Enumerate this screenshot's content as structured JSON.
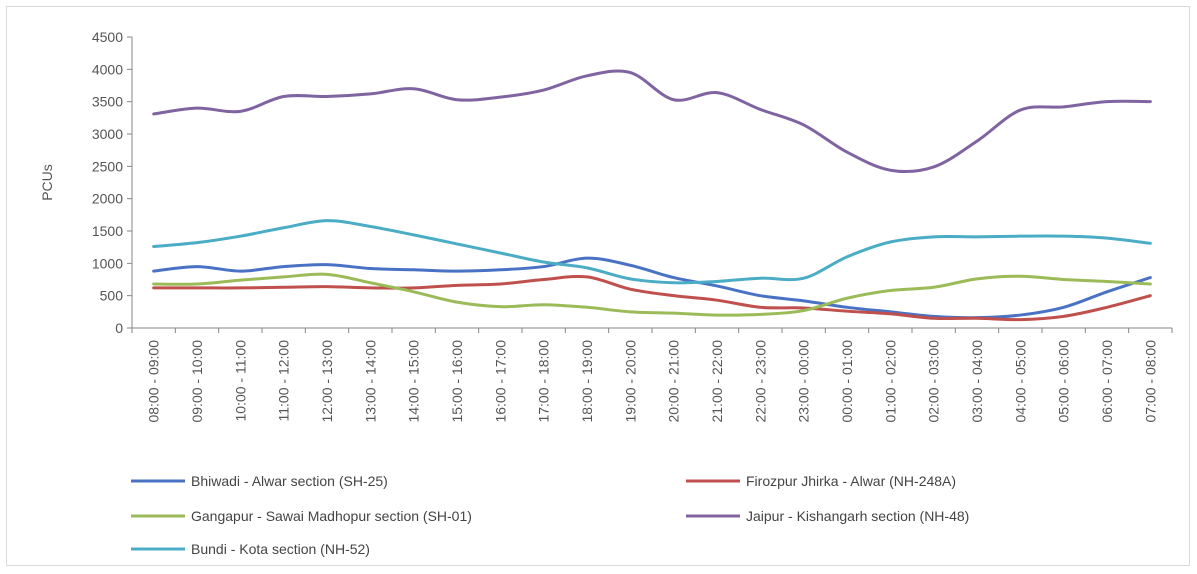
{
  "chart_data": {
    "type": "line",
    "ylabel": "PCUs",
    "ylim": [
      0,
      4500
    ],
    "yticks": [
      0,
      500,
      1000,
      1500,
      2000,
      2500,
      3000,
      3500,
      4000,
      4500
    ],
    "grid": false,
    "legend_position": "bottom",
    "categories": [
      "08:00 - 09:00",
      "09:00 - 10:00",
      "10:00 - 11:00",
      "11:00 - 12:00",
      "12:00 - 13:00",
      "13:00 - 14:00",
      "14:00 - 15:00",
      "15:00 - 16:00",
      "16:00 - 17:00",
      "17:00 - 18:00",
      "18:00 - 19:00",
      "19:00 - 20:00",
      "20:00 - 21:00",
      "21:00 - 22:00",
      "22:00 - 23:00",
      "23:00 - 00:00",
      "00:00 - 01:00",
      "01:00 - 02:00",
      "02:00 - 03:00",
      "03:00 - 04:00",
      "04:00 - 05:00",
      "05:00 - 06:00",
      "06:00 - 07:00",
      "07:00 - 08:00"
    ],
    "series": [
      {
        "name": "Bhiwadi - Alwar section (SH-25)",
        "color": "#4a72c4",
        "values": [
          880,
          950,
          880,
          950,
          980,
          920,
          900,
          880,
          900,
          950,
          1080,
          970,
          780,
          650,
          500,
          420,
          320,
          250,
          180,
          160,
          200,
          320,
          560,
          780
        ]
      },
      {
        "name": "Firozpur Jhirka - Alwar (NH-248A)",
        "color": "#c0504d",
        "values": [
          620,
          620,
          620,
          630,
          640,
          620,
          620,
          660,
          680,
          750,
          790,
          600,
          500,
          430,
          320,
          310,
          260,
          220,
          150,
          150,
          130,
          180,
          320,
          500
        ]
      },
      {
        "name": "Gangapur - Sawai Madhopur section (SH-01)",
        "color": "#9bbb59",
        "values": [
          680,
          680,
          740,
          790,
          830,
          700,
          560,
          400,
          330,
          360,
          320,
          250,
          230,
          200,
          210,
          270,
          460,
          580,
          630,
          760,
          800,
          750,
          720,
          680
        ]
      },
      {
        "name": "Jaipur - Kishangarh section (NH-48)",
        "color": "#8064a2",
        "values": [
          3310,
          3400,
          3350,
          3580,
          3580,
          3620,
          3700,
          3530,
          3570,
          3680,
          3900,
          3950,
          3530,
          3640,
          3380,
          3140,
          2720,
          2440,
          2490,
          2890,
          3370,
          3420,
          3500,
          3500
        ]
      },
      {
        "name": "Bundi - Kota section (NH-52)",
        "color": "#4bacc6",
        "values": [
          1260,
          1320,
          1420,
          1550,
          1660,
          1570,
          1440,
          1300,
          1160,
          1020,
          930,
          760,
          700,
          720,
          770,
          770,
          1100,
          1330,
          1410,
          1410,
          1420,
          1420,
          1390,
          1310
        ]
      }
    ]
  }
}
